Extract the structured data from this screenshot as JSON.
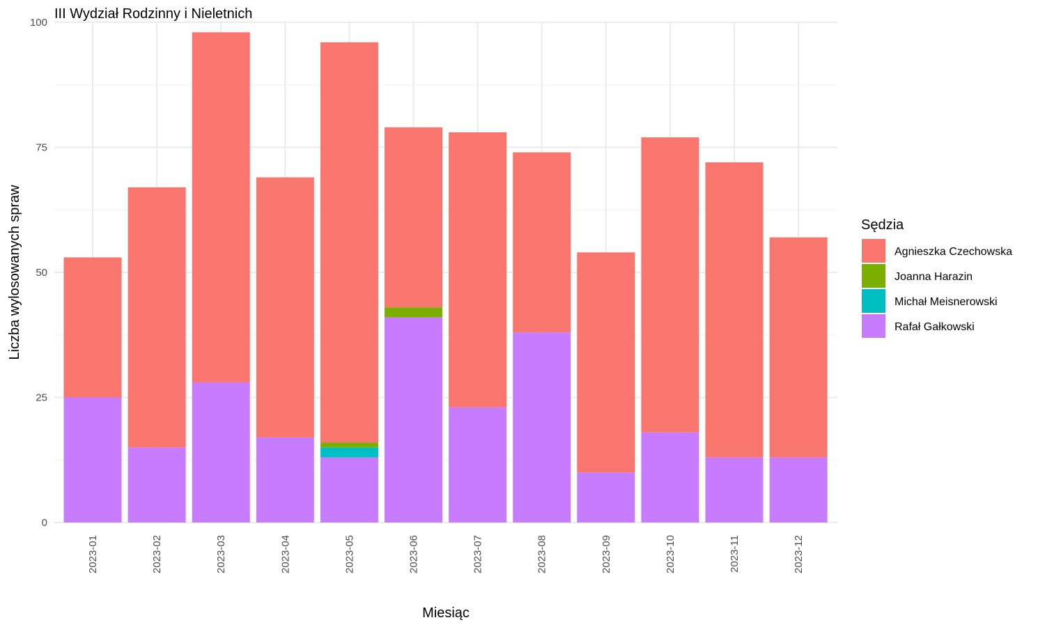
{
  "chart_data": {
    "type": "bar",
    "stacked": true,
    "title": "III Wydział Rodzinny i Nieletnich",
    "xlabel": "Miesiąc",
    "ylabel": "Liczba wylosowanych spraw",
    "ylim": [
      0,
      100
    ],
    "yticks": [
      0,
      25,
      50,
      75,
      100
    ],
    "grid": true,
    "legend_position": "right",
    "legend_title": "Sędzia",
    "categories": [
      "2023-01",
      "2023-02",
      "2023-03",
      "2023-04",
      "2023-05",
      "2023-06",
      "2023-07",
      "2023-08",
      "2023-09",
      "2023-10",
      "2023-11",
      "2023-12"
    ],
    "series": [
      {
        "name": "Rafał Gałkowski",
        "color": "#C77CFF",
        "values": [
          25,
          15,
          28,
          17,
          13,
          41,
          23,
          38,
          10,
          18,
          13,
          13
        ]
      },
      {
        "name": "Michał Meisnerowski",
        "color": "#00BFC4",
        "values": [
          0,
          0,
          0,
          0,
          2,
          0,
          0,
          0,
          0,
          0,
          0,
          0
        ]
      },
      {
        "name": "Joanna Harazin",
        "color": "#7CAE00",
        "values": [
          0,
          0,
          0,
          0,
          1,
          2,
          0,
          0,
          0,
          0,
          0,
          0
        ]
      },
      {
        "name": "Agnieszka Czechowska",
        "color": "#F8766D",
        "values": [
          28,
          52,
          70,
          52,
          80,
          36,
          55,
          36,
          44,
          59,
          59,
          44
        ]
      }
    ],
    "legend_order": [
      "Agnieszka Czechowska",
      "Joanna Harazin",
      "Michał Meisnerowski",
      "Rafał Gałkowski"
    ]
  }
}
